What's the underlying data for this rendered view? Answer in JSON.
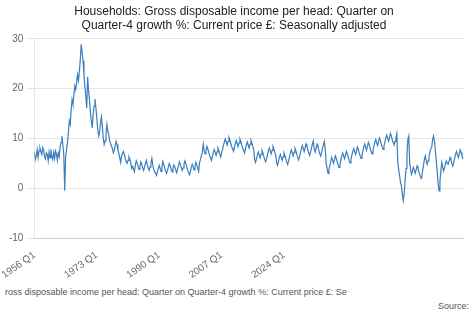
{
  "chart_data": {
    "type": "line",
    "title": "Households: Gross disposable income per head: Quarter on\nQuarter-4 growth %: Current price £: Seasonally adjusted",
    "annotations": [
      "ross disposable income per head: Quarter on Quarter-4 growth %: Current price £: Se",
      "Source:"
    ],
    "color": "#3a7ebf",
    "grid": "y",
    "xlim": [
      1956,
      2073.05
    ],
    "xticks": [
      {
        "value": 1956,
        "label": "1956 Q1"
      },
      {
        "value": 1973,
        "label": "1973 Q1"
      },
      {
        "value": 1990,
        "label": "1990 Q1"
      },
      {
        "value": 2007,
        "label": "2007 Q1"
      },
      {
        "value": 2024,
        "label": "2024 Q1"
      }
    ],
    "ylim": [
      -10,
      30
    ],
    "yticks": [
      -10,
      0,
      10,
      20,
      30
    ],
    "x": [
      1956,
      1956.25,
      1956.5,
      1956.75,
      1957,
      1957.25,
      1957.5,
      1957.75,
      1958,
      1958.25,
      1958.5,
      1958.75,
      1959,
      1959.25,
      1959.5,
      1959.75,
      1960,
      1960.25,
      1960.5,
      1960.75,
      1961,
      1961.25,
      1961.5,
      1961.75,
      1962,
      1962.25,
      1962.5,
      1962.75,
      1963,
      1963.25,
      1963.5,
      1963.75,
      1964,
      1964.25,
      1964.5,
      1964.75,
      1965,
      1965.25,
      1965.5,
      1965.75,
      1966,
      1966.25,
      1966.5,
      1966.75,
      1967,
      1967.25,
      1967.5,
      1967.75,
      1968,
      1968.25,
      1968.5,
      1968.75,
      1969,
      1969.25,
      1969.5,
      1969.75,
      1970,
      1970.25,
      1970.5,
      1970.75,
      1971,
      1971.25,
      1971.5,
      1971.75,
      1972,
      1972.25,
      1972.5,
      1972.75,
      1973,
      1973.25,
      1973.5,
      1973.75,
      1974,
      1974.25,
      1974.5,
      1974.75,
      1975,
      1975.25,
      1975.5,
      1975.75,
      1976,
      1976.25,
      1976.5,
      1976.75,
      1977,
      1977.25,
      1977.5,
      1977.75,
      1978,
      1978.25,
      1978.5,
      1978.75,
      1979,
      1979.25,
      1979.5,
      1979.75,
      1980,
      1980.25,
      1980.5,
      1980.75,
      1981,
      1981.25,
      1981.5,
      1981.75,
      1982,
      1982.25,
      1982.5,
      1982.75,
      1983,
      1983.25,
      1983.5,
      1983.75,
      1984,
      1984.25,
      1984.5,
      1984.75,
      1985,
      1985.25,
      1985.5,
      1985.75,
      1986,
      1986.25,
      1986.5,
      1986.75,
      1987,
      1987.25,
      1987.5,
      1987.75,
      1988,
      1988.25,
      1988.5,
      1988.75,
      1989,
      1989.25,
      1989.5,
      1989.75,
      1990,
      1990.25,
      1990.5,
      1990.75,
      1991,
      1991.25,
      1991.5,
      1991.75,
      1992,
      1992.25,
      1992.5,
      1992.75,
      1993,
      1993.25,
      1993.5,
      1993.75,
      1994,
      1994.25,
      1994.5,
      1994.75,
      1995,
      1995.25,
      1995.5,
      1995.75,
      1996,
      1996.25,
      1996.5,
      1996.75,
      1997,
      1997.25,
      1997.5,
      1997.75,
      1998,
      1998.25,
      1998.5,
      1998.75,
      1999,
      1999.25,
      1999.5,
      1999.75,
      2000,
      2000.25,
      2000.5,
      2000.75,
      2001,
      2001.25,
      2001.5,
      2001.75,
      2002,
      2002.25,
      2002.5,
      2002.75,
      2003,
      2003.25,
      2003.5,
      2003.75,
      2004,
      2004.25,
      2004.5,
      2004.75,
      2005,
      2005.25,
      2005.5,
      2005.75,
      2006,
      2006.25,
      2006.5,
      2006.75,
      2007,
      2007.25,
      2007.5,
      2007.75,
      2008,
      2008.25,
      2008.5,
      2008.75,
      2009,
      2009.25,
      2009.5,
      2009.75,
      2010,
      2010.25,
      2010.5,
      2010.75,
      2011,
      2011.25,
      2011.5,
      2011.75,
      2012,
      2012.25,
      2012.5,
      2012.75,
      2013,
      2013.25,
      2013.5,
      2013.75,
      2014,
      2014.25,
      2014.5,
      2014.75,
      2015,
      2015.25,
      2015.5,
      2015.75,
      2016,
      2016.25,
      2016.5,
      2016.75,
      2017,
      2017.25,
      2017.5,
      2017.75,
      2018,
      2018.25,
      2018.5,
      2018.75,
      2019,
      2019.25,
      2019.5,
      2019.75,
      2020,
      2020.25,
      2020.5,
      2020.75,
      2021,
      2021.25,
      2021.5,
      2021.75,
      2022,
      2022.25,
      2022.5,
      2022.75,
      2023,
      2023.25,
      2023.5,
      2023.75,
      2024,
      2024.25,
      2024.5,
      2024.75,
      2025,
      2025.25,
      2025.5,
      2025.75,
      2026,
      2026.25,
      2026.5,
      2026.75,
      2027,
      2027.25,
      2027.5,
      2027.75,
      2028,
      2028.25,
      2028.5,
      2028.75,
      2029,
      2029.25,
      2029.5,
      2029.75,
      2030,
      2030.25,
      2030.5,
      2030.75,
      2031,
      2031.25,
      2031.5,
      2031.75,
      2032,
      2032.25,
      2032.5,
      2032.75,
      2033,
      2033.25,
      2033.5,
      2033.75,
      2034,
      2034.25,
      2034.5,
      2034.75,
      2035,
      2035.25,
      2035.5,
      2035.75,
      2036,
      2036.25,
      2036.5,
      2036.75,
      2037,
      2037.25,
      2037.5,
      2037.75,
      2038,
      2038.25,
      2038.5,
      2038.75,
      2039,
      2039.25,
      2039.5,
      2039.75,
      2040,
      2040.25,
      2040.5,
      2040.75,
      2041,
      2041.25,
      2041.5,
      2041.75,
      2042,
      2042.25,
      2042.5,
      2042.75,
      2043,
      2043.25,
      2043.5,
      2043.75,
      2044,
      2044.25,
      2044.5,
      2044.75,
      2045,
      2045.25,
      2045.5,
      2045.75,
      2046,
      2046.25,
      2046.5,
      2046.75,
      2047,
      2047.25,
      2047.5,
      2047.75,
      2048,
      2048.25,
      2048.5,
      2048.75,
      2049,
      2049.25,
      2049.5,
      2049.75,
      2050,
      2050.25,
      2050.5,
      2050.75,
      2051,
      2051.25,
      2051.5,
      2051.75,
      2052,
      2052.25,
      2052.5,
      2052.75,
      2053,
      2053.25,
      2053.5,
      2053.75,
      2054,
      2054.25,
      2054.5,
      2054.75,
      2055,
      2055.25,
      2055.5,
      2055.75,
      2056,
      2056.25,
      2056.5,
      2056.75,
      2057,
      2057.25,
      2057.5,
      2057.75,
      2058,
      2058.25,
      2058.5,
      2058.75,
      2059,
      2059.25,
      2059.5,
      2059.75,
      2060,
      2060.25,
      2060.5,
      2060.75,
      2061,
      2061.25,
      2061.5,
      2061.75,
      2062,
      2062.25,
      2062.5,
      2062.75,
      2063,
      2063.25,
      2063.5,
      2063.75,
      2064,
      2064.25,
      2064.5,
      2064.75,
      2065,
      2065.25,
      2065.5,
      2065.75,
      2066,
      2066.25,
      2066.5,
      2066.75,
      2067,
      2067.25,
      2067.5,
      2067.75,
      2068,
      2068.25,
      2068.5,
      2068.75,
      2069,
      2069.25,
      2069.5,
      2069.75,
      2070,
      2070.25,
      2070.5,
      2070.75,
      2071,
      2071.25,
      2071.5,
      2071.75,
      2072,
      2072.25,
      2072.5,
      2072.75
    ],
    "values": [
      7.2,
      5.8,
      6.5,
      7.8,
      6.2,
      7.5,
      8.1,
      7.3,
      6.8,
      8.2,
      7.6,
      6.4,
      5.9,
      7.1,
      6.8,
      5.5,
      7.3,
      6.1,
      7.8,
      6.5,
      5.8,
      7.2,
      6.0,
      7.5,
      6.9,
      5.6,
      7.1,
      6.4,
      8.3,
      9.2,
      10.5,
      8.7,
      6.8,
      -0.5,
      6.2,
      7.8,
      9.1,
      11.2,
      13.5,
      12.8,
      15.6,
      17.8,
      16.9,
      18.7,
      20.5,
      19.8,
      21.3,
      22.8,
      21.6,
      23.5,
      25.8,
      28.9,
      27.2,
      25.6,
      22.8,
      20.3,
      18.5,
      16.1,
      22.4,
      19.6,
      17.8,
      15.2,
      13.5,
      12.1,
      14.8,
      16.5,
      17.9,
      16.2,
      14.0,
      11.8,
      10.5,
      11.2,
      13.0,
      14.3,
      12.5,
      10.2,
      8.8,
      9.5,
      11.0,
      12.8,
      11.5,
      10.8,
      9.5,
      9.0,
      8.4,
      8.0,
      7.1,
      7.6,
      8.5,
      9.4,
      8.8,
      7.6,
      7.0,
      6.1,
      5.2,
      6.6,
      7.0,
      7.4,
      6.8,
      6.0,
      5.3,
      5.0,
      5.6,
      6.3,
      5.8,
      5.1,
      4.0,
      4.4,
      3.8,
      3.3,
      4.7,
      5.5,
      5.0,
      4.3,
      3.8,
      4.4,
      5.3,
      4.8,
      4.1,
      3.6,
      4.3,
      5.0,
      5.6,
      4.8,
      4.0,
      3.6,
      4.3,
      5.1,
      6.0,
      4.7,
      3.8,
      3.3,
      3.0,
      2.6,
      3.3,
      4.0,
      4.6,
      4.0,
      3.4,
      4.3,
      5.4,
      4.8,
      4.1,
      3.5,
      3.0,
      3.6,
      4.3,
      5.0,
      4.5,
      3.9,
      3.3,
      4.0,
      4.7,
      4.3,
      3.7,
      3.1,
      3.8,
      4.5,
      5.3,
      4.8,
      4.2,
      3.6,
      4.1,
      4.8,
      5.5,
      5.0,
      4.3,
      3.7,
      3.2,
      2.7,
      3.4,
      4.2,
      4.8,
      4.3,
      3.7,
      4.4,
      5.2,
      4.7,
      4.0,
      3.4,
      5.2,
      5.8,
      6.5,
      7.2,
      8.8,
      7.5,
      6.9,
      7.6,
      8.4,
      7.9,
      7.2,
      6.6,
      6.1,
      5.6,
      6.4,
      7.2,
      7.8,
      7.2,
      6.6,
      7.3,
      8.1,
      7.6,
      6.9,
      6.3,
      7.1,
      7.8,
      8.6,
      9.3,
      9.9,
      9.3,
      8.7,
      9.4,
      10.2,
      9.7,
      9.0,
      8.4,
      7.9,
      7.4,
      8.2,
      9.0,
      9.6,
      9.0,
      8.4,
      9.1,
      9.9,
      9.4,
      8.7,
      8.1,
      7.6,
      7.1,
      7.9,
      8.7,
      9.3,
      8.7,
      8.1,
      8.8,
      9.6,
      9.1,
      8.4,
      7.8,
      5.8,
      5.2,
      5.9,
      6.7,
      7.3,
      6.7,
      6.1,
      6.8,
      7.6,
      7.1,
      6.4,
      5.8,
      5.3,
      5.9,
      6.7,
      7.5,
      8.1,
      7.5,
      6.9,
      7.6,
      8.4,
      7.9,
      7.2,
      6.6,
      5.1,
      4.6,
      5.4,
      6.2,
      6.8,
      6.2,
      5.6,
      6.3,
      7.1,
      6.6,
      5.9,
      5.3,
      4.8,
      5.5,
      6.3,
      7.1,
      7.7,
      7.1,
      6.5,
      7.2,
      8.0,
      7.5,
      6.8,
      6.2,
      5.7,
      6.4,
      7.2,
      8.0,
      8.6,
      8.0,
      7.4,
      8.1,
      8.9,
      8.4,
      7.7,
      7.1,
      6.6,
      7.3,
      8.1,
      8.9,
      9.5,
      7.9,
      7.3,
      8.0,
      8.8,
      8.3,
      7.6,
      7.0,
      6.5,
      7.2,
      8.0,
      8.8,
      9.4,
      7.8,
      5.0,
      4.0,
      3.0,
      3.8,
      4.6,
      5.4,
      6.2,
      5.6,
      5.0,
      5.7,
      6.5,
      6.0,
      5.3,
      4.7,
      4.2,
      4.9,
      5.7,
      6.5,
      7.1,
      6.5,
      5.9,
      6.6,
      7.4,
      6.9,
      6.2,
      5.6,
      5.1,
      5.8,
      6.6,
      7.4,
      8.0,
      7.4,
      6.8,
      7.5,
      8.3,
      7.8,
      7.1,
      6.5,
      6.0,
      6.7,
      7.5,
      8.3,
      8.9,
      8.3,
      7.7,
      8.4,
      9.2,
      8.7,
      8.0,
      7.4,
      6.9,
      7.6,
      8.4,
      9.2,
      9.8,
      9.2,
      8.6,
      9.3,
      10.1,
      9.6,
      8.9,
      8.3,
      7.8,
      8.5,
      9.3,
      10.1,
      10.7,
      10.1,
      9.5,
      10.2,
      11.0,
      10.5,
      9.8,
      9.2,
      8.7,
      9.4,
      10.2,
      11.0,
      5.2,
      3.8,
      2.5,
      1.2,
      0.5,
      -1.2,
      -2.5,
      -1.0,
      1.5,
      4.0,
      6.5,
      9.8,
      10.5,
      5.2,
      3.8,
      2.8,
      3.5,
      4.2,
      3.6,
      3.0,
      3.7,
      4.5,
      4.0,
      3.3,
      2.7,
      2.2,
      2.0,
      3.5,
      4.5,
      5.8,
      6.5,
      5.5,
      4.8,
      5.5,
      6.3,
      7.2,
      8.0,
      8.2,
      9.8,
      10.5,
      9.5,
      7.5,
      5.5,
      3.2,
      1.0,
      -0.5,
      1.5,
      3.5,
      5.2,
      4.2,
      3.5,
      4.2,
      5.0,
      5.5,
      5.0,
      4.8,
      5.5,
      6.2,
      5.6,
      5.0,
      4.5,
      5.2,
      6.0,
      6.8,
      7.4,
      6.8,
      6.2,
      6.9,
      7.7,
      7.2,
      6.5,
      5.9
    ]
  }
}
